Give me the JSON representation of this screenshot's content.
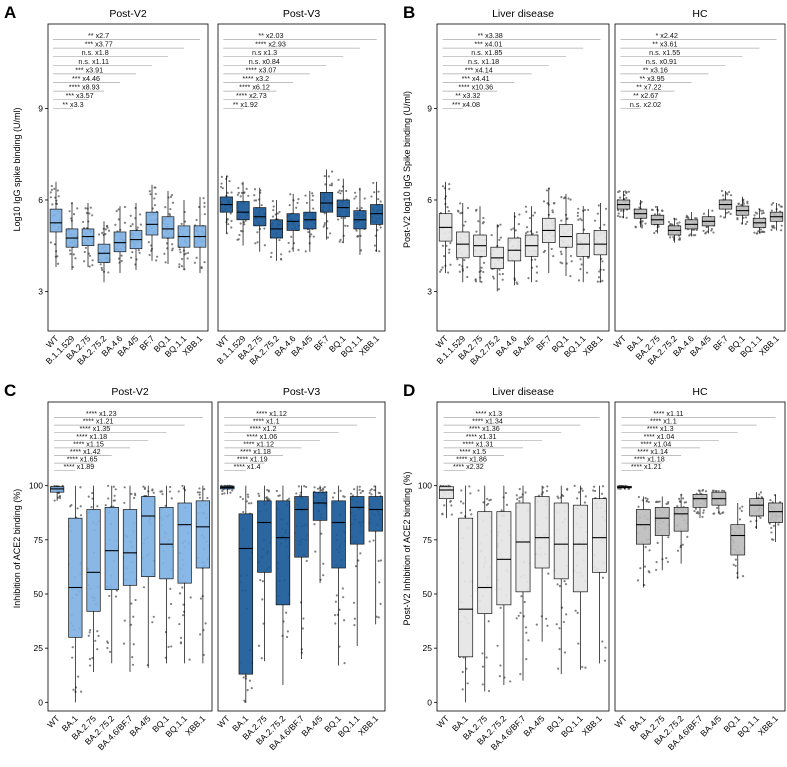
{
  "chart_data": [
    {
      "label": "A",
      "type": "box",
      "ylabel": "Log10 IgG spike binding (U/ml)",
      "yticks": [
        3,
        6,
        9
      ],
      "ylim": [
        1.7,
        12.3
      ],
      "panels": [
        {
          "title": "Post-V2",
          "fill": "#7fb2e5",
          "categories": [
            "WT",
            "B.1.1.529",
            "BA.2.75",
            "BA.2.75.2",
            "BA.4.6",
            "BA.4/5",
            "BF.7",
            "BQ.1",
            "BQ.1.1",
            "XBB.1"
          ],
          "boxes": [
            {
              "q1": 4.95,
              "med": 5.25,
              "q3": 5.7,
              "lo": 3.8,
              "hi": 6.6
            },
            {
              "q1": 4.45,
              "med": 4.75,
              "q3": 5.05,
              "lo": 3.7,
              "hi": 5.9
            },
            {
              "q1": 4.5,
              "med": 4.8,
              "q3": 5.05,
              "lo": 3.8,
              "hi": 5.9
            },
            {
              "q1": 3.95,
              "med": 4.25,
              "q3": 4.55,
              "lo": 3.3,
              "hi": 5.3
            },
            {
              "q1": 4.3,
              "med": 4.6,
              "q3": 4.95,
              "lo": 3.6,
              "hi": 5.8
            },
            {
              "q1": 4.4,
              "med": 4.7,
              "q3": 5.0,
              "lo": 3.7,
              "hi": 5.9
            },
            {
              "q1": 4.85,
              "med": 5.2,
              "q3": 5.6,
              "lo": 4.0,
              "hi": 6.5
            },
            {
              "q1": 4.75,
              "med": 5.05,
              "q3": 5.45,
              "lo": 3.9,
              "hi": 6.3
            },
            {
              "q1": 4.45,
              "med": 4.8,
              "q3": 5.15,
              "lo": 3.7,
              "hi": 6.0
            },
            {
              "q1": 4.45,
              "med": 4.8,
              "q3": 5.15,
              "lo": 3.6,
              "hi": 6.1
            }
          ],
          "annotations": [
            "** x2.7",
            "*** x3.77",
            "n.s. x1.8",
            "n.s. x1.11",
            "*** x3.91",
            "*** x4.46",
            "**** x8.93",
            "*** x3.57",
            "** x3.3"
          ]
        },
        {
          "title": "Post-V3",
          "fill": "#1a5a99",
          "categories": [
            "WT",
            "B.1.1.529",
            "BA.2.75",
            "BA.2.75.2",
            "BA.4.6",
            "BA.4/5",
            "BF.7",
            "BQ.1",
            "BQ.1.1",
            "XBB.1"
          ],
          "boxes": [
            {
              "q1": 5.6,
              "med": 5.85,
              "q3": 6.1,
              "lo": 4.9,
              "hi": 6.8
            },
            {
              "q1": 5.35,
              "med": 5.6,
              "q3": 5.95,
              "lo": 4.5,
              "hi": 6.6
            },
            {
              "q1": 5.15,
              "med": 5.45,
              "q3": 5.75,
              "lo": 4.3,
              "hi": 6.4
            },
            {
              "q1": 4.75,
              "med": 5.05,
              "q3": 5.35,
              "lo": 4.0,
              "hi": 6.0
            },
            {
              "q1": 5.0,
              "med": 5.3,
              "q3": 5.55,
              "lo": 4.3,
              "hi": 6.2
            },
            {
              "q1": 5.05,
              "med": 5.35,
              "q3": 5.6,
              "lo": 4.3,
              "hi": 6.3
            },
            {
              "q1": 5.6,
              "med": 5.9,
              "q3": 6.25,
              "lo": 4.7,
              "hi": 7.0
            },
            {
              "q1": 5.45,
              "med": 5.75,
              "q3": 6.0,
              "lo": 4.6,
              "hi": 6.7
            },
            {
              "q1": 5.05,
              "med": 5.35,
              "q3": 5.65,
              "lo": 4.2,
              "hi": 6.4
            },
            {
              "q1": 5.2,
              "med": 5.55,
              "q3": 5.85,
              "lo": 4.3,
              "hi": 6.6
            }
          ],
          "annotations": [
            "** x2.03",
            "**** x2.93",
            "n.s x1.3",
            "n.s. x0.84",
            "**** x3.07",
            "**** x3.2",
            "**** x6.12",
            "**** x2.73",
            "** x1.92"
          ]
        }
      ]
    },
    {
      "label": "B",
      "type": "box",
      "ylabel": "Post-V2 log10 IgG Spike binding (U/ml)",
      "yticks": [
        3,
        6,
        9
      ],
      "ylim": [
        1.7,
        12.3
      ],
      "panels": [
        {
          "title": "Liver disease",
          "fill": "#e6e6e6",
          "categories": [
            "WT",
            "B.1.1.529",
            "BA.2.75",
            "BA.2.75.2",
            "BA.4.6",
            "BA.4/5",
            "BF.7",
            "BQ.1",
            "BQ.1.1",
            "XBB.1"
          ],
          "boxes": [
            {
              "q1": 4.65,
              "med": 5.1,
              "q3": 5.55,
              "lo": 3.6,
              "hi": 6.6
            },
            {
              "q1": 4.1,
              "med": 4.55,
              "q3": 4.95,
              "lo": 3.3,
              "hi": 5.9
            },
            {
              "q1": 4.15,
              "med": 4.5,
              "q3": 4.85,
              "lo": 3.3,
              "hi": 5.8
            },
            {
              "q1": 3.75,
              "med": 4.1,
              "q3": 4.45,
              "lo": 3.0,
              "hi": 5.2
            },
            {
              "q1": 4.0,
              "med": 4.35,
              "q3": 4.75,
              "lo": 3.2,
              "hi": 5.6
            },
            {
              "q1": 4.15,
              "med": 4.5,
              "q3": 4.85,
              "lo": 3.3,
              "hi": 5.8
            },
            {
              "q1": 4.6,
              "med": 5.0,
              "q3": 5.4,
              "lo": 3.6,
              "hi": 6.4
            },
            {
              "q1": 4.45,
              "med": 4.8,
              "q3": 5.2,
              "lo": 3.5,
              "hi": 6.2
            },
            {
              "q1": 4.15,
              "med": 4.55,
              "q3": 4.9,
              "lo": 3.3,
              "hi": 5.8
            },
            {
              "q1": 4.2,
              "med": 4.55,
              "q3": 5.0,
              "lo": 3.3,
              "hi": 5.9
            }
          ],
          "annotations": [
            "** x3.38",
            "*** x4.01",
            "n.s. x1.85",
            "n.s. x1.18",
            "*** x4.14",
            "*** x4.41",
            "**** x10.36",
            "** x3.32",
            "*** x4.08"
          ]
        },
        {
          "title": "HC",
          "fill": "#bdbdbd",
          "categories": [
            "WT",
            "BA.1",
            "BA.2.75",
            "BA.2.75.2",
            "BA.4.6",
            "BA.4/5",
            "BF.7",
            "BQ.1",
            "BQ.1.1",
            "XBB.1"
          ],
          "boxes": [
            {
              "q1": 5.7,
              "med": 5.85,
              "q3": 6.0,
              "lo": 5.4,
              "hi": 6.3
            },
            {
              "q1": 5.4,
              "med": 5.55,
              "q3": 5.7,
              "lo": 5.1,
              "hi": 6.0
            },
            {
              "q1": 5.2,
              "med": 5.35,
              "q3": 5.5,
              "lo": 4.9,
              "hi": 5.8
            },
            {
              "q1": 4.85,
              "med": 5.0,
              "q3": 5.15,
              "lo": 4.6,
              "hi": 5.4
            },
            {
              "q1": 5.05,
              "med": 5.2,
              "q3": 5.35,
              "lo": 4.8,
              "hi": 5.6
            },
            {
              "q1": 5.15,
              "med": 5.3,
              "q3": 5.45,
              "lo": 4.9,
              "hi": 5.7
            },
            {
              "q1": 5.7,
              "med": 5.85,
              "q3": 6.0,
              "lo": 5.4,
              "hi": 6.3
            },
            {
              "q1": 5.5,
              "med": 5.65,
              "q3": 5.8,
              "lo": 5.2,
              "hi": 6.1
            },
            {
              "q1": 5.1,
              "med": 5.25,
              "q3": 5.4,
              "lo": 4.9,
              "hi": 5.7
            },
            {
              "q1": 5.3,
              "med": 5.45,
              "q3": 5.6,
              "lo": 5.0,
              "hi": 5.9
            }
          ],
          "annotations": [
            "* x2.42",
            "** x3.61",
            "n.s. x1.55",
            "n.s. x0.91",
            "** x3.16",
            "** x3.95",
            "** x7.22",
            "** x2.67",
            "n.s. x2.02"
          ]
        }
      ]
    },
    {
      "label": "C",
      "type": "box",
      "ylabel": "Inhibition of ACE2 binding (%)",
      "yticks": [
        0,
        25,
        50,
        75,
        100
      ],
      "ylim": [
        -4,
        146
      ],
      "panels": [
        {
          "title": "Post-V2",
          "fill": "#7fb2e5",
          "categories": [
            "WT",
            "BA.1",
            "BA.2.75",
            "BA.2.75.2",
            "BA.4.6/BF.7",
            "BA.4/5",
            "BQ.1",
            "BQ.1.1",
            "XBB.1"
          ],
          "boxes": [
            {
              "q1": 97,
              "med": 98.5,
              "q3": 99.5,
              "lo": 93,
              "hi": 100
            },
            {
              "q1": 30,
              "med": 53,
              "q3": 85,
              "lo": 0,
              "hi": 100
            },
            {
              "q1": 42,
              "med": 60,
              "q3": 89,
              "lo": 14,
              "hi": 100
            },
            {
              "q1": 52,
              "med": 70,
              "q3": 90,
              "lo": 18,
              "hi": 100
            },
            {
              "q1": 54,
              "med": 69,
              "q3": 89,
              "lo": 14,
              "hi": 100
            },
            {
              "q1": 58,
              "med": 86,
              "q3": 95,
              "lo": 16,
              "hi": 100
            },
            {
              "q1": 57,
              "med": 73,
              "q3": 90,
              "lo": 18,
              "hi": 100
            },
            {
              "q1": 55,
              "med": 82,
              "q3": 92,
              "lo": 18,
              "hi": 100
            },
            {
              "q1": 62,
              "med": 81,
              "q3": 93,
              "lo": 18,
              "hi": 100
            }
          ],
          "annotations": [
            "**** x1.23",
            "**** x1.21",
            "**** x1.35",
            "**** x1.18",
            "**** x1.15",
            "**** x1.42",
            "**** x1.65",
            "**** x1.89"
          ]
        },
        {
          "title": "Post-V3",
          "fill": "#1a5a99",
          "categories": [
            "WT",
            "BA.1",
            "BA.2.75",
            "BA.2.75.2",
            "BA.4.6/BF.7",
            "BA.4/5",
            "BQ.1",
            "BQ.1.1",
            "XBB.1"
          ],
          "boxes": [
            {
              "q1": 98.5,
              "med": 99.2,
              "q3": 99.8,
              "lo": 96,
              "hi": 100
            },
            {
              "q1": 13,
              "med": 71,
              "q3": 87,
              "lo": 0,
              "hi": 100
            },
            {
              "q1": 60,
              "med": 83,
              "q3": 93,
              "lo": 19,
              "hi": 100
            },
            {
              "q1": 45,
              "med": 76,
              "q3": 93,
              "lo": 8,
              "hi": 100
            },
            {
              "q1": 67,
              "med": 89,
              "q3": 95,
              "lo": 20,
              "hi": 100
            },
            {
              "q1": 84,
              "med": 92,
              "q3": 97,
              "lo": 55,
              "hi": 100
            },
            {
              "q1": 62,
              "med": 83,
              "q3": 93,
              "lo": 17,
              "hi": 100
            },
            {
              "q1": 73,
              "med": 90,
              "q3": 95,
              "lo": 26,
              "hi": 100
            },
            {
              "q1": 79,
              "med": 89,
              "q3": 95,
              "lo": 36,
              "hi": 100
            }
          ],
          "annotations": [
            "**** x1.12",
            "**** x1.1",
            "**** x1.2",
            "**** x1.06",
            "**** x1.12",
            "**** x1.18",
            "**** x1.19",
            "**** x1.4"
          ]
        }
      ]
    },
    {
      "label": "D",
      "type": "box",
      "ylabel": "Post-V2 Inhibition of ACE2 binding (%)",
      "yticks": [
        0,
        25,
        50,
        75,
        100
      ],
      "ylim": [
        -4,
        146
      ],
      "panels": [
        {
          "title": "Liver disease",
          "fill": "#e6e6e6",
          "categories": [
            "WT",
            "BA.1",
            "BA.2.75",
            "BA.2.75.2",
            "BA.4.6/BF.7",
            "BA.4/5",
            "BQ.1",
            "BQ.1.1",
            "XBB.1"
          ],
          "boxes": [
            {
              "q1": 94,
              "med": 98,
              "q3": 99.5,
              "lo": 85,
              "hi": 100
            },
            {
              "q1": 21,
              "med": 43,
              "q3": 85,
              "lo": 0,
              "hi": 100
            },
            {
              "q1": 41,
              "med": 53,
              "q3": 88,
              "lo": 5,
              "hi": 100
            },
            {
              "q1": 45,
              "med": 66,
              "q3": 88,
              "lo": 8,
              "hi": 100
            },
            {
              "q1": 51,
              "med": 74,
              "q3": 92,
              "lo": 10,
              "hi": 100
            },
            {
              "q1": 62,
              "med": 76,
              "q3": 95,
              "lo": 28,
              "hi": 100
            },
            {
              "q1": 57,
              "med": 73,
              "q3": 92,
              "lo": 13,
              "hi": 100
            },
            {
              "q1": 51,
              "med": 73,
              "q3": 91,
              "lo": 15,
              "hi": 100
            },
            {
              "q1": 60,
              "med": 76,
              "q3": 94,
              "lo": 18,
              "hi": 100
            }
          ],
          "annotations": [
            "**** x1.3",
            "**** x1.34",
            "**** x1.36",
            "**** x1.31",
            "**** x1.31",
            "**** x1.5",
            "**** x1.86",
            "**** x2.32"
          ]
        },
        {
          "title": "HC",
          "fill": "#bdbdbd",
          "categories": [
            "WT",
            "BA.1",
            "BA.2.75",
            "BA.2.75.2",
            "BA.4.6/BF.7",
            "BA.4/5",
            "BQ.1",
            "BQ.1.1",
            "XBB.1"
          ],
          "boxes": [
            {
              "q1": 99,
              "med": 99.3,
              "q3": 99.7,
              "lo": 98.5,
              "hi": 100
            },
            {
              "q1": 73,
              "med": 82,
              "q3": 89,
              "lo": 53,
              "hi": 95
            },
            {
              "q1": 77,
              "med": 85,
              "q3": 90,
              "lo": 61,
              "hi": 95
            },
            {
              "q1": 79,
              "med": 87,
              "q3": 90,
              "lo": 64,
              "hi": 96
            },
            {
              "q1": 90,
              "med": 94,
              "q3": 96,
              "lo": 85,
              "hi": 98
            },
            {
              "q1": 91,
              "med": 94,
              "q3": 97,
              "lo": 87,
              "hi": 98
            },
            {
              "q1": 68,
              "med": 77,
              "q3": 82,
              "lo": 57,
              "hi": 92
            },
            {
              "q1": 86,
              "med": 91,
              "q3": 94,
              "lo": 80,
              "hi": 97
            },
            {
              "q1": 83,
              "med": 88,
              "q3": 92,
              "lo": 74,
              "hi": 96
            }
          ],
          "annotations": [
            "**** x1.11",
            "**** x1.1",
            "**** x1.3",
            "**** x1.04",
            "**** x1.04",
            "**** x1.14",
            "**** x1.18",
            "**** x1.21"
          ]
        }
      ]
    }
  ]
}
